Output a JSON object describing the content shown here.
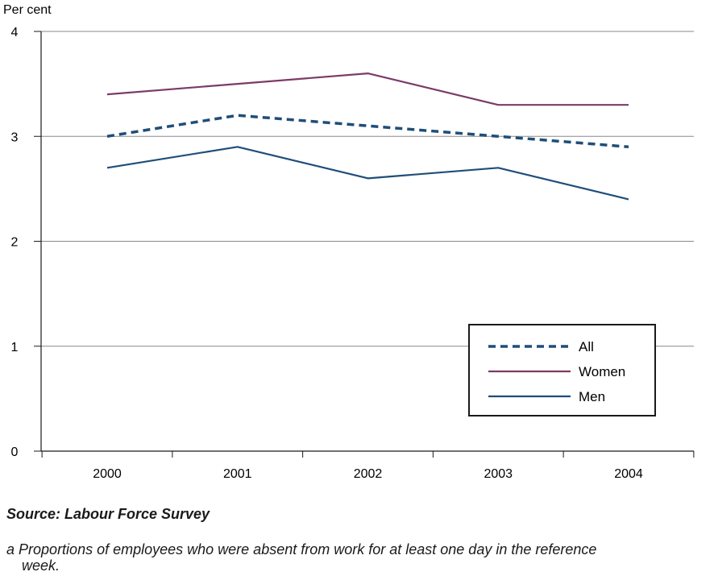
{
  "chart_data": {
    "type": "line",
    "ylabel": "Per cent",
    "x": [
      "2000",
      "2001",
      "2002",
      "2003",
      "2004"
    ],
    "ylim": [
      0,
      4
    ],
    "yticks": [
      0,
      1,
      2,
      3,
      4
    ],
    "grid": true,
    "legend_position": "bottom-right",
    "series": [
      {
        "name": "All",
        "values": [
          3.0,
          3.2,
          3.1,
          3.0,
          2.9
        ],
        "color": "#1f4e79",
        "style": "dashed"
      },
      {
        "name": "Women",
        "values": [
          3.4,
          3.5,
          3.6,
          3.3,
          3.3
        ],
        "color": "#7b3b67",
        "style": "solid"
      },
      {
        "name": "Men",
        "values": [
          2.7,
          2.9,
          2.6,
          2.7,
          2.4
        ],
        "color": "#1f4e79",
        "style": "solid"
      }
    ]
  },
  "source": "Source: Labour Force Survey",
  "footnote": {
    "marker": "a",
    "line1": "Proportions of employees who were absent from work for at least one day in the reference",
    "line2": "week."
  }
}
